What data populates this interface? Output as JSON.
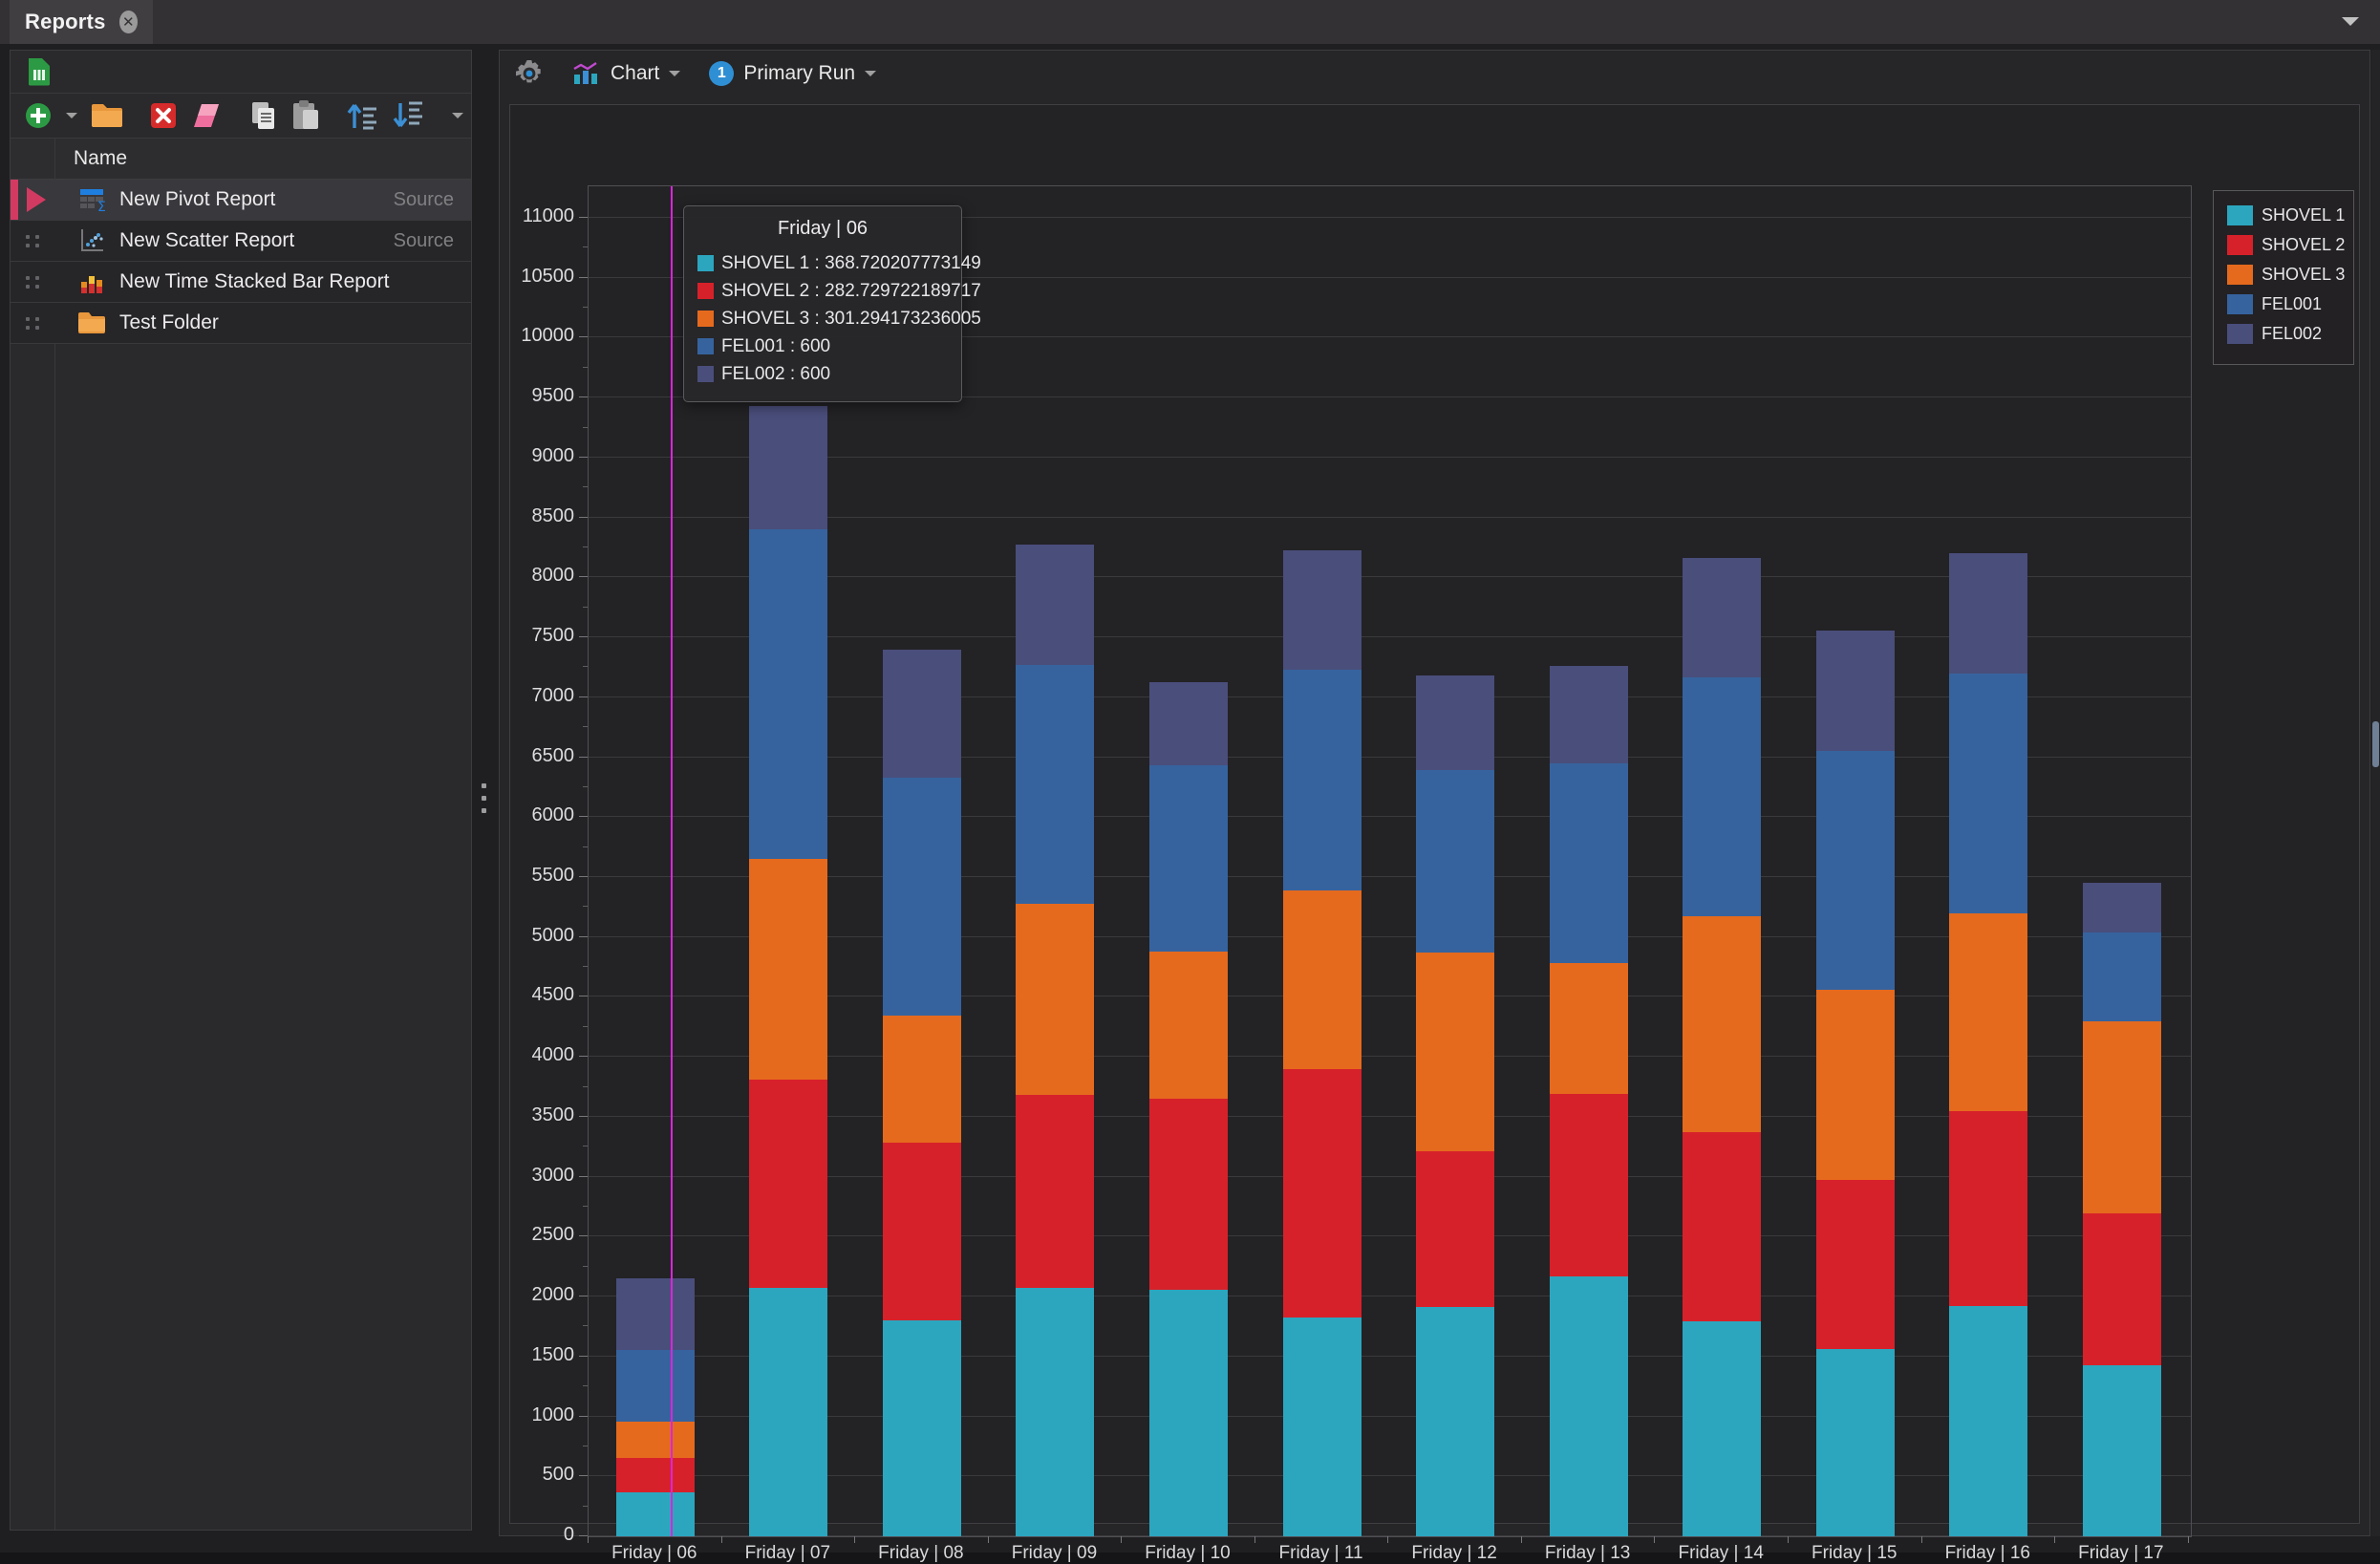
{
  "titlebar": {
    "tab_label": "Reports"
  },
  "sidebar": {
    "header": {
      "name_column": "Name"
    },
    "toolbar": {
      "icons": [
        "add-button",
        "add-dropdown-caret",
        "new-folder-button",
        "delete-button",
        "eraser-button",
        "copy-button",
        "paste-button",
        "sort-ascending-button",
        "sort-descending-button",
        "more-dropdown-caret"
      ]
    },
    "items": [
      {
        "label": "New Pivot Report",
        "meta": "Source",
        "icon": "pivot-report-icon",
        "selected": true
      },
      {
        "label": "New Scatter Report",
        "meta": "Source",
        "icon": "scatter-report-icon",
        "selected": false
      },
      {
        "label": "New Time Stacked Bar Report",
        "meta": "",
        "icon": "stacked-bar-report-icon",
        "selected": false
      },
      {
        "label": "Test Folder",
        "meta": "",
        "icon": "folder-icon",
        "selected": false
      }
    ]
  },
  "main_toolbar": {
    "chart_label": "Chart",
    "run_label": "Primary Run",
    "run_badge": "1"
  },
  "colors": {
    "accent_magenta": "#d926d9",
    "selection_crimson": "#d23a62",
    "badge_blue": "#2f8fd4",
    "grid": "#3a393c"
  },
  "tooltip": {
    "title": "Friday | 06",
    "separator": " : ",
    "rows": [
      {
        "name": "SHOVEL 1",
        "value": "368.720207773149",
        "color": "#2ca6bf"
      },
      {
        "name": "SHOVEL 2",
        "value": "282.729722189717",
        "color": "#d7212a"
      },
      {
        "name": "SHOVEL 3",
        "value": "301.294173236005",
        "color": "#e56a1e"
      },
      {
        "name": "FEL001",
        "value": "600",
        "color": "#36639e"
      },
      {
        "name": "FEL002",
        "value": "600",
        "color": "#4a4e7b"
      }
    ]
  },
  "chart_data": {
    "type": "bar",
    "stacked": true,
    "title": "",
    "xlabel": "",
    "ylabel": "",
    "ylim": [
      0,
      11000
    ],
    "ytick_step": 500,
    "grid": true,
    "legend_position": "top-right",
    "highlighted_category": "Friday | 06",
    "categories": [
      "Friday | 06",
      "Friday | 07",
      "Friday | 08",
      "Friday | 09",
      "Friday | 10",
      "Friday | 11",
      "Friday | 12",
      "Friday | 13",
      "Friday | 14",
      "Friday | 15",
      "Friday | 16",
      "Friday | 17"
    ],
    "series": [
      {
        "name": "SHOVEL 1",
        "color": "#2ca6bf",
        "values": [
          368.720207773149,
          2075,
          1800,
          2075,
          2053,
          1826,
          1910,
          2170,
          1793,
          1563,
          1920,
          1423
        ]
      },
      {
        "name": "SHOVEL 2",
        "color": "#d7212a",
        "values": [
          282.729722189717,
          1735,
          1487,
          1610,
          1597,
          2074,
          1305,
          1520,
          1577,
          1413,
          1625,
          1270
        ]
      },
      {
        "name": "SHOVEL 3",
        "color": "#e56a1e",
        "values": [
          301.294173236005,
          1845,
          1057,
          1595,
          1225,
          1490,
          1655,
          1090,
          1800,
          1584,
          1655,
          1607
        ]
      },
      {
        "name": "FEL001",
        "color": "#36639e",
        "values": [
          600,
          2745,
          1986,
          1990,
          1555,
          1840,
          1520,
          1670,
          2000,
          1990,
          2000,
          740
        ]
      },
      {
        "name": "FEL002",
        "color": "#4a4e7b",
        "values": [
          600,
          1030,
          1070,
          1005,
          695,
          1000,
          790,
          810,
          990,
          1010,
          1000,
          410
        ]
      }
    ]
  }
}
